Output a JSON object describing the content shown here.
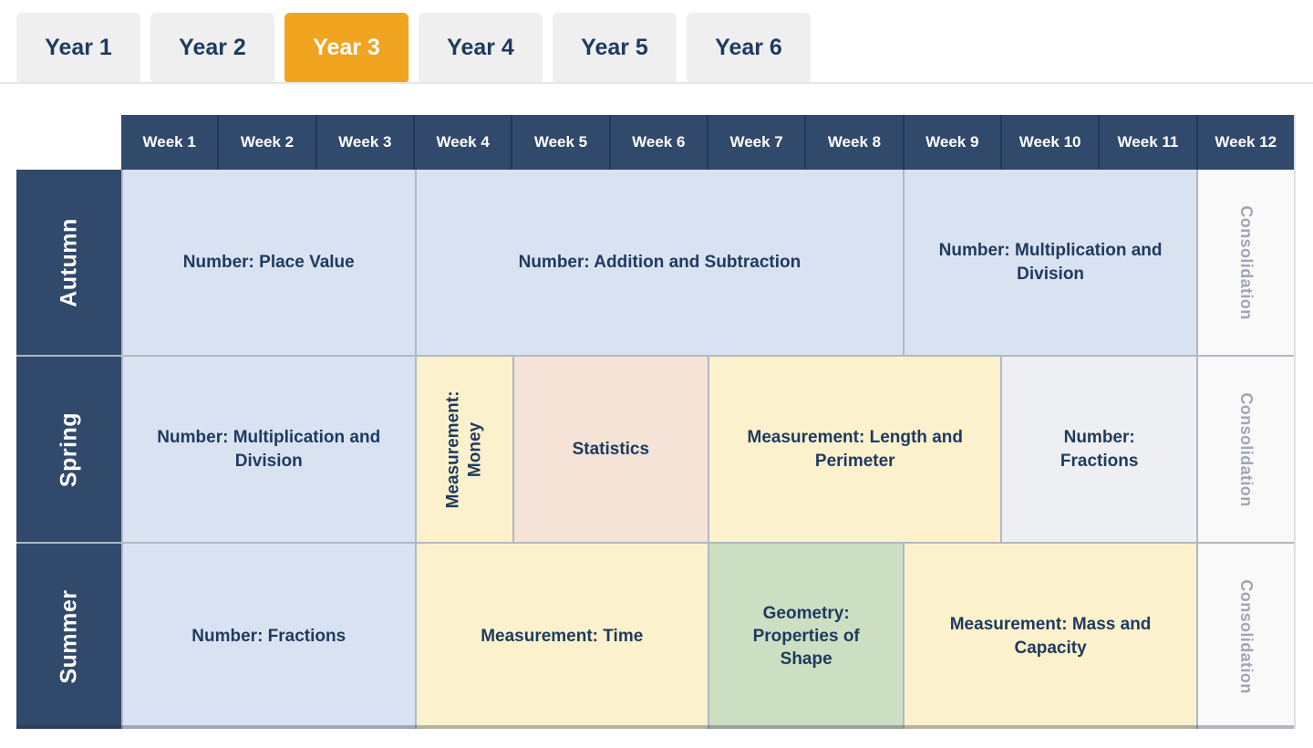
{
  "tabs": {
    "items": [
      {
        "label": "Year 1",
        "active": false
      },
      {
        "label": "Year 2",
        "active": false
      },
      {
        "label": "Year 3",
        "active": true
      },
      {
        "label": "Year 4",
        "active": false
      },
      {
        "label": "Year 5",
        "active": false
      },
      {
        "label": "Year 6",
        "active": false
      }
    ]
  },
  "weeks": [
    "Week 1",
    "Week 2",
    "Week 3",
    "Week 4",
    "Week 5",
    "Week 6",
    "Week 7",
    "Week 8",
    "Week 9",
    "Week 10",
    "Week 11",
    "Week 12"
  ],
  "colors": {
    "navy_header": "#31496B",
    "active_tab_orange": "#F0A41F",
    "inactive_tab_grey": "#EFEFEF",
    "number_blue": "#D9E2F1",
    "measurement_yellow": "#FCF1CD",
    "statistics_tan": "#F4E3D6",
    "geometry_green": "#CCDFC2",
    "fractions_grey": "#EDEFF2",
    "consolidation_bg": "#F9F9F9",
    "consolidation_text": "#9EA7B4",
    "cell_text_navy": "#1E3A5F"
  },
  "rows": [
    {
      "label": "Autumn",
      "cells": [
        {
          "text": "Number: Place Value",
          "weeks": 3,
          "category": "number"
        },
        {
          "text": "Number: Addition and Subtraction",
          "weeks": 5,
          "category": "number"
        },
        {
          "text": "Number: Multiplication and Division",
          "weeks": 3,
          "category": "number"
        },
        {
          "text": "Consolidation",
          "weeks": 1,
          "category": "consolidation",
          "orientation": "vertical"
        }
      ]
    },
    {
      "label": "Spring",
      "cells": [
        {
          "text": "Number: Multiplication and Division",
          "weeks": 3,
          "category": "number"
        },
        {
          "text": "Measurement: Money",
          "weeks": 1,
          "category": "measurement",
          "orientation": "vertical"
        },
        {
          "text": "Statistics",
          "weeks": 2,
          "category": "statistics"
        },
        {
          "text": "Measurement: Length and Perimeter",
          "weeks": 3,
          "category": "measurement"
        },
        {
          "text": "Number: Fractions",
          "weeks": 2,
          "category": "fractions-grey"
        },
        {
          "text": "Consolidation",
          "weeks": 1,
          "category": "consolidation",
          "orientation": "vertical"
        }
      ]
    },
    {
      "label": "Summer",
      "cells": [
        {
          "text": "Number: Fractions",
          "weeks": 3,
          "category": "number"
        },
        {
          "text": "Measurement: Time",
          "weeks": 3,
          "category": "measurement"
        },
        {
          "text": "Geometry: Properties of Shape",
          "weeks": 2,
          "category": "geometry"
        },
        {
          "text": "Measurement: Mass and Capacity",
          "weeks": 3,
          "category": "measurement"
        },
        {
          "text": "Consolidation",
          "weeks": 1,
          "category": "consolidation",
          "orientation": "vertical"
        }
      ]
    }
  ]
}
